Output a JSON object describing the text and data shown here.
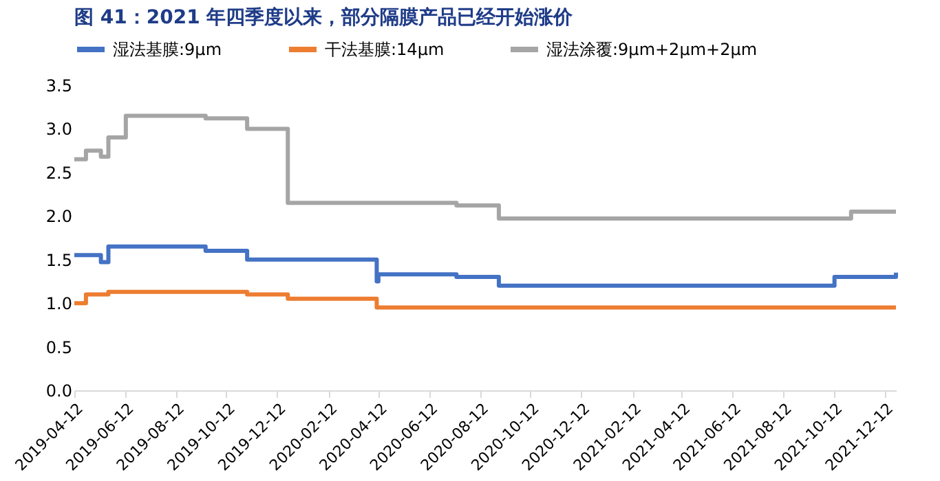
{
  "chart_data": {
    "type": "step",
    "title": "图 41：2021 年四季度以来，部分隔膜产品已经开始涨价",
    "series": [
      {
        "name": "湿法基膜:9μm",
        "color": "#4472c4",
        "x": [
          "2019-04-12",
          "2019-05-14",
          "2019-05-23",
          "2019-09-17",
          "2019-11-06",
          "2020-04-10",
          "2020-04-12",
          "2020-07-15",
          "2020-09-04",
          "2021-10-13",
          "2021-12-24",
          "2021-12-26"
        ],
        "values": [
          1.55,
          1.47,
          1.65,
          1.6,
          1.5,
          1.25,
          1.33,
          1.3,
          1.2,
          1.3,
          1.3,
          1.35
        ]
      },
      {
        "name": "干法基膜:14μm",
        "color": "#ed7d31",
        "x": [
          "2019-04-12",
          "2019-04-26",
          "2019-05-23",
          "2019-11-06",
          "2019-12-25",
          "2020-04-10",
          "2021-12-26"
        ],
        "values": [
          1.0,
          1.1,
          1.13,
          1.1,
          1.05,
          0.95,
          0.95
        ]
      },
      {
        "name": "湿法涂覆:9μm+2μm+2μm",
        "color": "#a5a5a5",
        "x": [
          "2019-04-12",
          "2019-04-26",
          "2019-05-14",
          "2019-05-23",
          "2019-06-13",
          "2019-09-17",
          "2019-11-06",
          "2019-12-25",
          "2020-07-15",
          "2020-09-04",
          "2021-11-02",
          "2021-12-26"
        ],
        "values": [
          2.65,
          2.75,
          2.68,
          2.9,
          3.15,
          3.12,
          3.0,
          2.15,
          2.12,
          1.97,
          2.05,
          2.05
        ]
      }
    ],
    "xlim": [
      "2019-04-12",
      "2021-12-26"
    ],
    "xticks": [
      "2019-04-12",
      "2019-06-12",
      "2019-08-12",
      "2019-10-12",
      "2019-12-12",
      "2020-02-12",
      "2020-04-12",
      "2020-06-12",
      "2020-08-12",
      "2020-10-12",
      "2020-12-12",
      "2021-02-12",
      "2021-04-12",
      "2021-06-12",
      "2021-08-12",
      "2021-10-12",
      "2021-12-12"
    ],
    "ylim": [
      0,
      3.5
    ],
    "yticks": [
      {
        "value": 0,
        "label": "0.0"
      },
      {
        "value": 0.5,
        "label": "0.5"
      },
      {
        "value": 1,
        "label": "1.0"
      },
      {
        "value": 1.5,
        "label": "1.5"
      },
      {
        "value": 2,
        "label": "2.0"
      },
      {
        "value": 2.5,
        "label": "2.5"
      },
      {
        "value": 3,
        "label": "3.0"
      },
      {
        "value": 3.5,
        "label": "3.5"
      }
    ],
    "grid": false,
    "legend": "top",
    "marker": "none",
    "line_style": "solid"
  }
}
